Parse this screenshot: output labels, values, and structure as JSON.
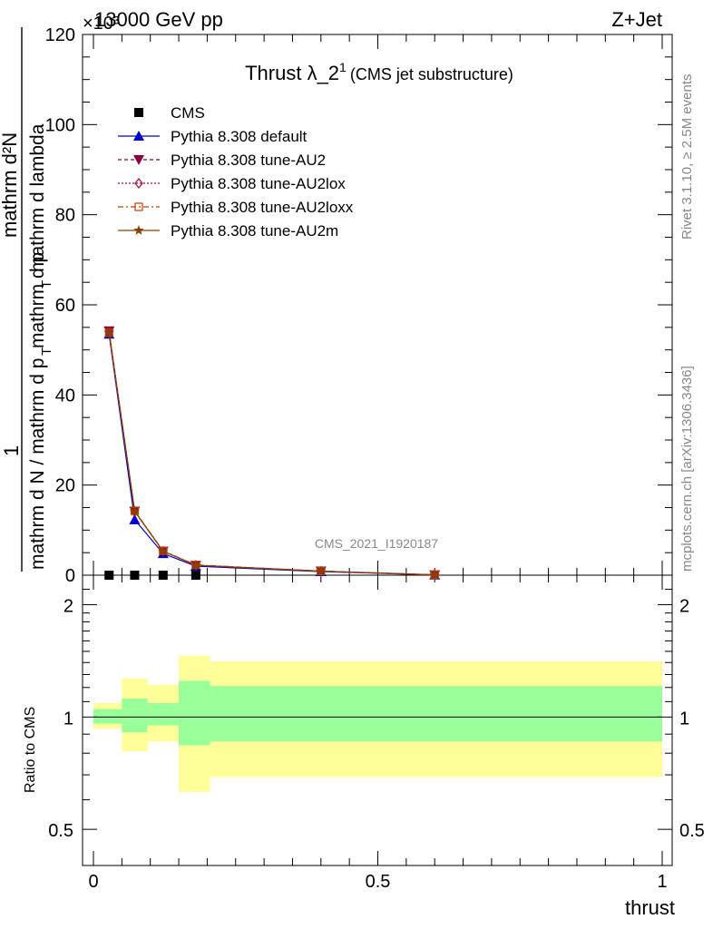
{
  "header": {
    "left": "13000 GeV pp",
    "right": "Z+Jet",
    "exponent": "×10³",
    "title_main": "Thrust λ_2",
    "title_sup": "1",
    "title_sub": "(CMS jet substructure)",
    "analysis_id": "CMS_2021_I1920187",
    "side_rivet": "Rivet 3.1.10, ≥ 2.5M events",
    "side_mcplots": "mcplots.cern.ch [arXiv:1306.3436]"
  },
  "main_plot": {
    "ylabel_num": "mathrm d²N",
    "ylabel_den": "mathrm d N / mathrm d p",
    "ylabel_den2": "mathrm d p",
    "ylabel_den3": "mathrm d lambda",
    "ylabel_prefix": "1",
    "ylabel_sub_T": "T",
    "y_ticks": [
      "0",
      "20",
      "40",
      "60",
      "80",
      "100",
      "120"
    ]
  },
  "ratio_plot": {
    "ylabel": "Ratio to CMS",
    "y_ticks": [
      "0.5",
      "1",
      "2"
    ],
    "x_ticks": [
      "0",
      "0.5",
      "1"
    ],
    "xlabel": "thrust"
  },
  "legend": {
    "items": [
      {
        "label": "CMS",
        "color": "#000000",
        "marker": "square-filled",
        "style": "none"
      },
      {
        "label": "Pythia 8.308 default",
        "color": "#0000cc",
        "marker": "triangle-up-filled",
        "style": "solid"
      },
      {
        "label": "Pythia 8.308 tune-AU2",
        "color": "#8b0040",
        "marker": "triangle-down-filled",
        "style": "dashed"
      },
      {
        "label": "Pythia 8.308 tune-AU2lox",
        "color": "#a01030",
        "marker": "diamond-open",
        "style": "dotted"
      },
      {
        "label": "Pythia 8.308 tune-AU2loxx",
        "color": "#c04000",
        "marker": "square-open",
        "style": "dashdot"
      },
      {
        "label": "Pythia 8.308 tune-AU2m",
        "color": "#8b4000",
        "marker": "star",
        "style": "solid"
      }
    ]
  },
  "chart_data": {
    "type": "line",
    "xlabel": "thrust",
    "ylabel": "1 / mathrm d N / mathrm d p_T mathrm d p_T mathrm d lambda · mathrm d²N",
    "xlim": [
      0,
      1
    ],
    "ylim": [
      0,
      120000
    ],
    "y_scale_note": "×10³",
    "cms_x": [
      0.0275,
      0.0725,
      0.1225,
      0.18
    ],
    "cms_y": [
      0,
      0,
      0,
      0
    ],
    "series": [
      {
        "name": "Pythia 8.308 default",
        "x": [
          0.0275,
          0.0725,
          0.1225,
          0.18,
          0.4,
          0.6
        ],
        "y": [
          53500,
          12300,
          4800,
          2000,
          800,
          50
        ]
      },
      {
        "name": "Pythia 8.308 tune-AU2",
        "x": [
          0.0275,
          0.0725,
          0.1225,
          0.18,
          0.4,
          0.6
        ],
        "y": [
          54200,
          14200,
          5300,
          2200,
          900,
          80
        ]
      },
      {
        "name": "Pythia 8.308 tune-AU2lox",
        "x": [
          0.0275,
          0.0725,
          0.1225,
          0.18,
          0.4,
          0.6
        ],
        "y": [
          54000,
          14100,
          5300,
          2200,
          900,
          80
        ]
      },
      {
        "name": "Pythia 8.308 tune-AU2loxx",
        "x": [
          0.0275,
          0.0725,
          0.1225,
          0.18,
          0.4,
          0.6
        ],
        "y": [
          53800,
          14300,
          5400,
          2300,
          900,
          80
        ]
      },
      {
        "name": "Pythia 8.308 tune-AU2m",
        "x": [
          0.0275,
          0.0725,
          0.1225,
          0.18,
          0.4,
          0.6
        ],
        "y": [
          53900,
          14200,
          5300,
          2200,
          900,
          80
        ]
      }
    ],
    "ratio": {
      "ylim": [
        0.4,
        2.4
      ],
      "scale": "log",
      "bins": [
        {
          "x0": 0.0,
          "x1": 0.05,
          "green_lo": 0.96,
          "green_hi": 1.05,
          "yellow_lo": 0.93,
          "yellow_hi": 1.09
        },
        {
          "x0": 0.05,
          "x1": 0.095,
          "green_lo": 0.91,
          "green_hi": 1.12,
          "yellow_lo": 0.81,
          "yellow_hi": 1.27
        },
        {
          "x0": 0.095,
          "x1": 0.15,
          "green_lo": 0.95,
          "green_hi": 1.09,
          "yellow_lo": 0.86,
          "yellow_hi": 1.22
        },
        {
          "x0": 0.15,
          "x1": 0.205,
          "green_lo": 0.84,
          "green_hi": 1.25,
          "yellow_lo": 0.63,
          "yellow_hi": 1.46
        },
        {
          "x0": 0.205,
          "x1": 1.0,
          "green_lo": 0.86,
          "green_hi": 1.21,
          "yellow_lo": 0.69,
          "yellow_hi": 1.41
        }
      ]
    }
  }
}
